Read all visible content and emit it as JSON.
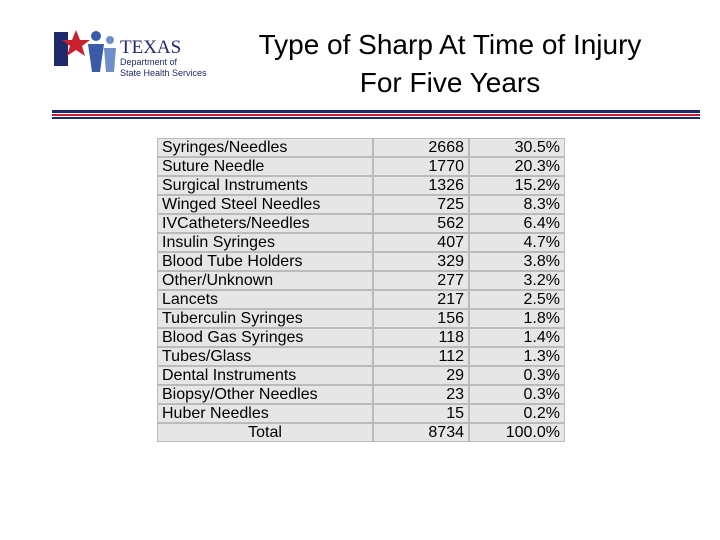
{
  "header": {
    "logo": {
      "name": "TEXAS",
      "line1": "Department of",
      "line2": "State Health Services"
    },
    "title": [
      "Type of Sharp At Time of Injury",
      "For Five Years"
    ]
  },
  "table": {
    "rows": [
      [
        "Syringes/Needles",
        "2668",
        "30.5%"
      ],
      [
        "Suture Needle",
        "1770",
        "20.3%"
      ],
      [
        "Surgical Instruments",
        "1326",
        "15.2%"
      ],
      [
        "Winged Steel Needles",
        "725",
        "8.3%"
      ],
      [
        "IVCatheters/Needles",
        "562",
        "6.4%"
      ],
      [
        "Insulin Syringes",
        "407",
        "4.7%"
      ],
      [
        "Blood Tube Holders",
        "329",
        "3.8%"
      ],
      [
        "Other/Unknown",
        "277",
        "3.2%"
      ],
      [
        "Lancets",
        "217",
        "2.5%"
      ],
      [
        "Tuberculin Syringes",
        "156",
        "1.8%"
      ],
      [
        "Blood Gas Syringes",
        "118",
        "1.4%"
      ],
      [
        "Tubes/Glass",
        "112",
        "1.3%"
      ],
      [
        "Dental Instruments",
        "29",
        "0.3%"
      ],
      [
        "Biopsy/Other Needles",
        "23",
        "0.3%"
      ],
      [
        "Huber Needles",
        "15",
        "0.2%"
      ],
      [
        "Total",
        "8734",
        "100.0%"
      ]
    ]
  }
}
